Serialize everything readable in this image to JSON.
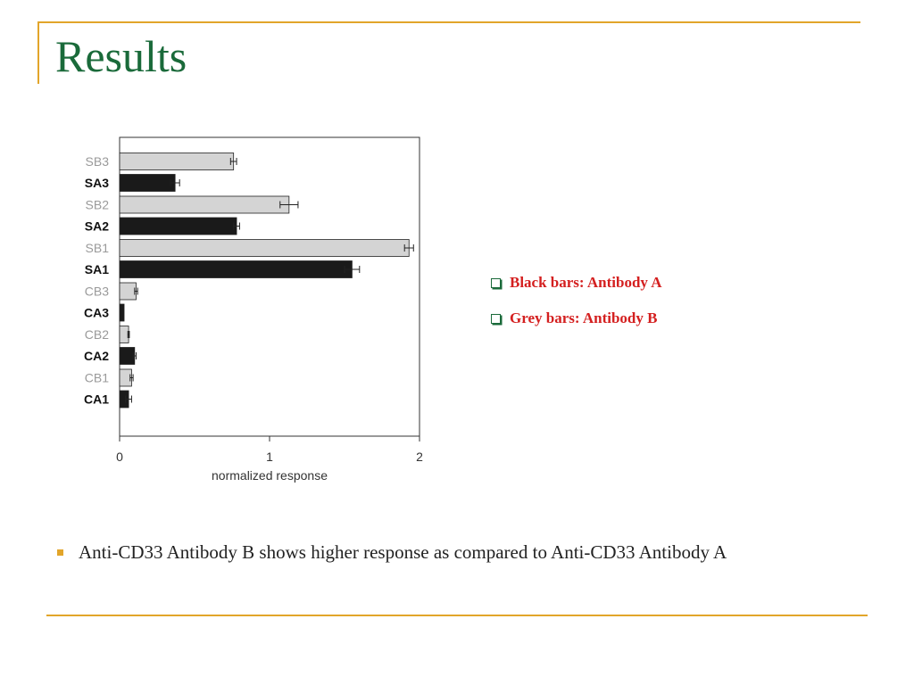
{
  "slide": {
    "title": "Results",
    "bullet": "Anti-CD33 Antibody B shows higher response as compared to Anti-CD33 Antibody A"
  },
  "legend": {
    "items": [
      {
        "label": "Black bars: Antibody A",
        "icon": "checkbox-icon"
      },
      {
        "label": "Grey bars: Antibody B",
        "icon": "checkbox-icon"
      }
    ]
  },
  "colors": {
    "accent": "#e2a52a",
    "title": "#1a6a3a",
    "legend_text": "#d41f1f",
    "bar_black": "#1a1a1a",
    "bar_grey": "#d4d4d4",
    "label_grey": "#9a9a9a",
    "label_black": "#111111"
  },
  "chart_data": {
    "type": "bar",
    "orientation": "horizontal",
    "title": "",
    "xlabel": "normalized response",
    "ylabel": "",
    "xlim": [
      0,
      2
    ],
    "x_ticks": [
      "0",
      "1",
      "2"
    ],
    "grid": false,
    "bars": [
      {
        "label": "SB3",
        "value": 0.76,
        "error": 0.02,
        "antibody": "B"
      },
      {
        "label": "SA3",
        "value": 0.37,
        "error": 0.03,
        "antibody": "A"
      },
      {
        "label": "SB2",
        "value": 1.13,
        "error": 0.06,
        "antibody": "B"
      },
      {
        "label": "SA2",
        "value": 0.78,
        "error": 0.02,
        "antibody": "A"
      },
      {
        "label": "SB1",
        "value": 1.93,
        "error": 0.03,
        "antibody": "B"
      },
      {
        "label": "SA1",
        "value": 1.55,
        "error": 0.05,
        "antibody": "A"
      },
      {
        "label": "CB3",
        "value": 0.11,
        "error": 0.01,
        "antibody": "B"
      },
      {
        "label": "CA3",
        "value": 0.03,
        "error": 0.0,
        "antibody": "A"
      },
      {
        "label": "CB2",
        "value": 0.06,
        "error": 0.005,
        "antibody": "B"
      },
      {
        "label": "CA2",
        "value": 0.1,
        "error": 0.01,
        "antibody": "A"
      },
      {
        "label": "CB1",
        "value": 0.08,
        "error": 0.01,
        "antibody": "B"
      },
      {
        "label": "CA1",
        "value": 0.06,
        "error": 0.02,
        "antibody": "A"
      }
    ]
  }
}
